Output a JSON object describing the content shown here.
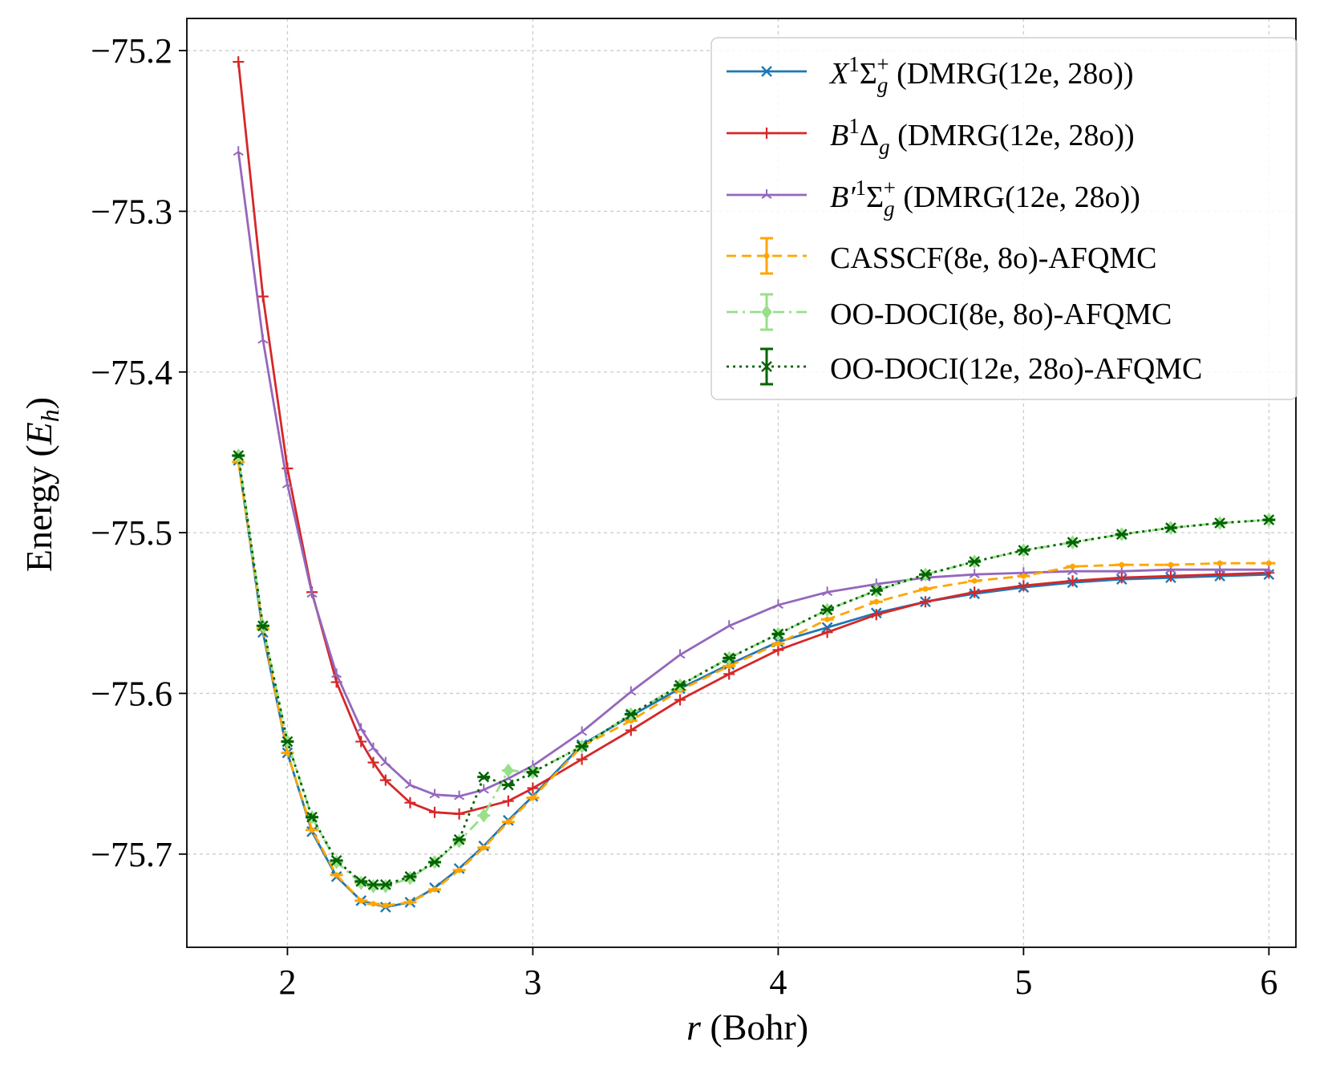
{
  "chart_data": {
    "type": "line",
    "title": "",
    "xlabel": {
      "var": "r",
      "rest": " (Bohr)"
    },
    "ylabel": {
      "text": "Energy (",
      "var": "E",
      "sub": "h",
      "close": ")"
    },
    "xlim": [
      1.59,
      6.11
    ],
    "ylim": [
      -75.758,
      -75.18
    ],
    "xticks": [
      2,
      3,
      4,
      5,
      6
    ],
    "xtick_labels": [
      "2",
      "3",
      "4",
      "5",
      "6"
    ],
    "yticks": [
      -75.2,
      -75.3,
      -75.4,
      -75.5,
      -75.6,
      -75.7
    ],
    "ytick_labels": [
      "−75.2",
      "−75.3",
      "−75.4",
      "−75.5",
      "−75.6",
      "−75.7"
    ],
    "grid": true,
    "legend_position": "top-right",
    "series": [
      {
        "name": "X1Sigma_g+ (DMRG(12e, 28o))",
        "label": {
          "main": "X",
          "sup": "1",
          "sym": "Σ",
          "sub": "g",
          "sup2": "+",
          "rest": " (DMRG(12e, 28o))"
        },
        "color": "#1f77b4",
        "marker": "x",
        "dash": "solid",
        "x": [
          1.8,
          1.9,
          2.0,
          2.1,
          2.2,
          2.3,
          2.4,
          2.5,
          2.6,
          2.7,
          2.8,
          2.9,
          3.0,
          3.2,
          3.4,
          3.6,
          3.8,
          4.0,
          4.2,
          4.4,
          4.6,
          4.8,
          5.0,
          5.2,
          5.4,
          5.6,
          5.8,
          6.0
        ],
        "y": [
          -75.455,
          -75.562,
          -75.637,
          -75.686,
          -75.714,
          -75.729,
          -75.733,
          -75.73,
          -75.721,
          -75.709,
          -75.695,
          -75.679,
          -75.664,
          -75.632,
          -75.614,
          -75.597,
          -75.582,
          -75.568,
          -75.559,
          -75.55,
          -75.543,
          -75.538,
          -75.534,
          -75.531,
          -75.529,
          -75.528,
          -75.527,
          -75.526
        ]
      },
      {
        "name": "B1Delta_g (DMRG(12e, 28o))",
        "label": {
          "main": "B",
          "sup": "1",
          "sym": "Δ",
          "sub": "g",
          "sup2": "",
          "rest": " (DMRG(12e, 28o))"
        },
        "color": "#d62728",
        "marker": "+",
        "dash": "solid",
        "x": [
          1.8,
          1.9,
          2.0,
          2.1,
          2.2,
          2.3,
          2.35,
          2.4,
          2.5,
          2.6,
          2.7,
          2.9,
          3.0,
          3.2,
          3.4,
          3.6,
          3.8,
          4.0,
          4.2,
          4.4,
          4.6,
          4.8,
          5.0,
          5.2,
          5.4,
          5.6,
          5.8,
          6.0
        ],
        "y": [
          -75.207,
          -75.353,
          -75.46,
          -75.537,
          -75.593,
          -75.63,
          -75.643,
          -75.654,
          -75.668,
          -75.674,
          -75.675,
          -75.667,
          -75.659,
          -75.641,
          -75.623,
          -75.604,
          -75.588,
          -75.573,
          -75.562,
          -75.551,
          -75.543,
          -75.537,
          -75.533,
          -75.53,
          -75.528,
          -75.527,
          -75.526,
          -75.525
        ]
      },
      {
        "name": "B'1Sigma_g+ (DMRG(12e, 28o))",
        "label": {
          "main": "B′",
          "sup": "1",
          "sym": "Σ",
          "sub": "g",
          "sup2": "+",
          "rest": " (DMRG(12e, 28o))"
        },
        "color": "#9467bd",
        "marker": "tri",
        "dash": "solid",
        "x": [
          1.8,
          1.9,
          2.0,
          2.1,
          2.2,
          2.3,
          2.35,
          2.4,
          2.5,
          2.6,
          2.7,
          2.8,
          2.9,
          3.0,
          3.2,
          3.4,
          3.6,
          3.8,
          4.0,
          4.2,
          4.4,
          4.6,
          4.8,
          5.0,
          5.2,
          5.4,
          5.6,
          5.8,
          6.0
        ],
        "y": [
          -75.263,
          -75.38,
          -75.47,
          -75.538,
          -75.588,
          -75.622,
          -75.634,
          -75.643,
          -75.657,
          -75.663,
          -75.664,
          -75.66,
          -75.653,
          -75.645,
          -75.624,
          -75.599,
          -75.576,
          -75.558,
          -75.545,
          -75.537,
          -75.532,
          -75.528,
          -75.526,
          -75.525,
          -75.524,
          -75.524,
          -75.523,
          -75.523,
          -75.523
        ]
      },
      {
        "name": "CASSCF(8e, 8o)-AFQMC",
        "label": {
          "text": "CASSCF(8e, 8o)-AFQMC"
        },
        "color": "#ffa500",
        "marker": "dot",
        "dash": "dashed",
        "x": [
          1.8,
          1.9,
          2.0,
          2.1,
          2.2,
          2.3,
          2.35,
          2.4,
          2.5,
          2.6,
          2.7,
          2.8,
          2.9,
          3.0,
          3.2,
          3.4,
          3.6,
          3.8,
          4.0,
          4.2,
          4.4,
          4.6,
          4.8,
          5.0,
          5.2,
          5.4,
          5.6,
          5.8,
          6.0
        ],
        "y": [
          -75.456,
          -75.56,
          -75.637,
          -75.685,
          -75.713,
          -75.729,
          -75.731,
          -75.732,
          -75.73,
          -75.722,
          -75.71,
          -75.696,
          -75.68,
          -75.665,
          -75.633,
          -75.617,
          -75.598,
          -75.583,
          -75.569,
          -75.554,
          -75.543,
          -75.535,
          -75.53,
          -75.527,
          -75.521,
          -75.52,
          -75.52,
          -75.519,
          -75.519
        ]
      },
      {
        "name": "OO-DOCI(8e, 8o)-AFQMC",
        "label": {
          "text": "OO-DOCI(8e, 8o)-AFQMC"
        },
        "color": "#98df8a",
        "marker": "diamond",
        "dash": "dashdot",
        "x": [
          1.8,
          1.9,
          2.0,
          2.1,
          2.2,
          2.3,
          2.35,
          2.4,
          2.5,
          2.6,
          2.7,
          2.8,
          2.9,
          3.0,
          3.2,
          3.4,
          3.6,
          3.8,
          4.0,
          4.2,
          4.4,
          4.6,
          4.8,
          5.0,
          5.2,
          5.4,
          5.6,
          5.8,
          6.0
        ],
        "y": [
          -75.452,
          -75.558,
          -75.63,
          -75.677,
          -75.705,
          -75.718,
          -75.72,
          -75.72,
          -75.715,
          -75.705,
          -75.692,
          -75.676,
          -75.648,
          -75.649,
          -75.633,
          -75.613,
          -75.595,
          -75.578,
          -75.563,
          -75.548,
          -75.536,
          -75.526,
          -75.518,
          -75.511,
          -75.506,
          -75.501,
          -75.497,
          -75.494,
          -75.492
        ]
      },
      {
        "name": "OO-DOCI(12e, 28o)-AFQMC",
        "label": {
          "text": "OO-DOCI(12e, 28o)-AFQMC"
        },
        "color": "#006400",
        "marker": "x",
        "dash": "dotted",
        "x": [
          1.8,
          1.9,
          2.0,
          2.1,
          2.2,
          2.3,
          2.35,
          2.4,
          2.5,
          2.6,
          2.7,
          2.8,
          2.9,
          3.0,
          3.2,
          3.4,
          3.6,
          3.8,
          4.0,
          4.2,
          4.4,
          4.6,
          4.8,
          5.0,
          5.2,
          5.4,
          5.6,
          5.8,
          6.0
        ],
        "y": [
          -75.452,
          -75.558,
          -75.63,
          -75.677,
          -75.704,
          -75.717,
          -75.719,
          -75.719,
          -75.714,
          -75.705,
          -75.691,
          -75.652,
          -75.657,
          -75.649,
          -75.633,
          -75.613,
          -75.595,
          -75.578,
          -75.563,
          -75.548,
          -75.536,
          -75.526,
          -75.518,
          -75.511,
          -75.506,
          -75.501,
          -75.497,
          -75.494,
          -75.492
        ]
      }
    ]
  }
}
